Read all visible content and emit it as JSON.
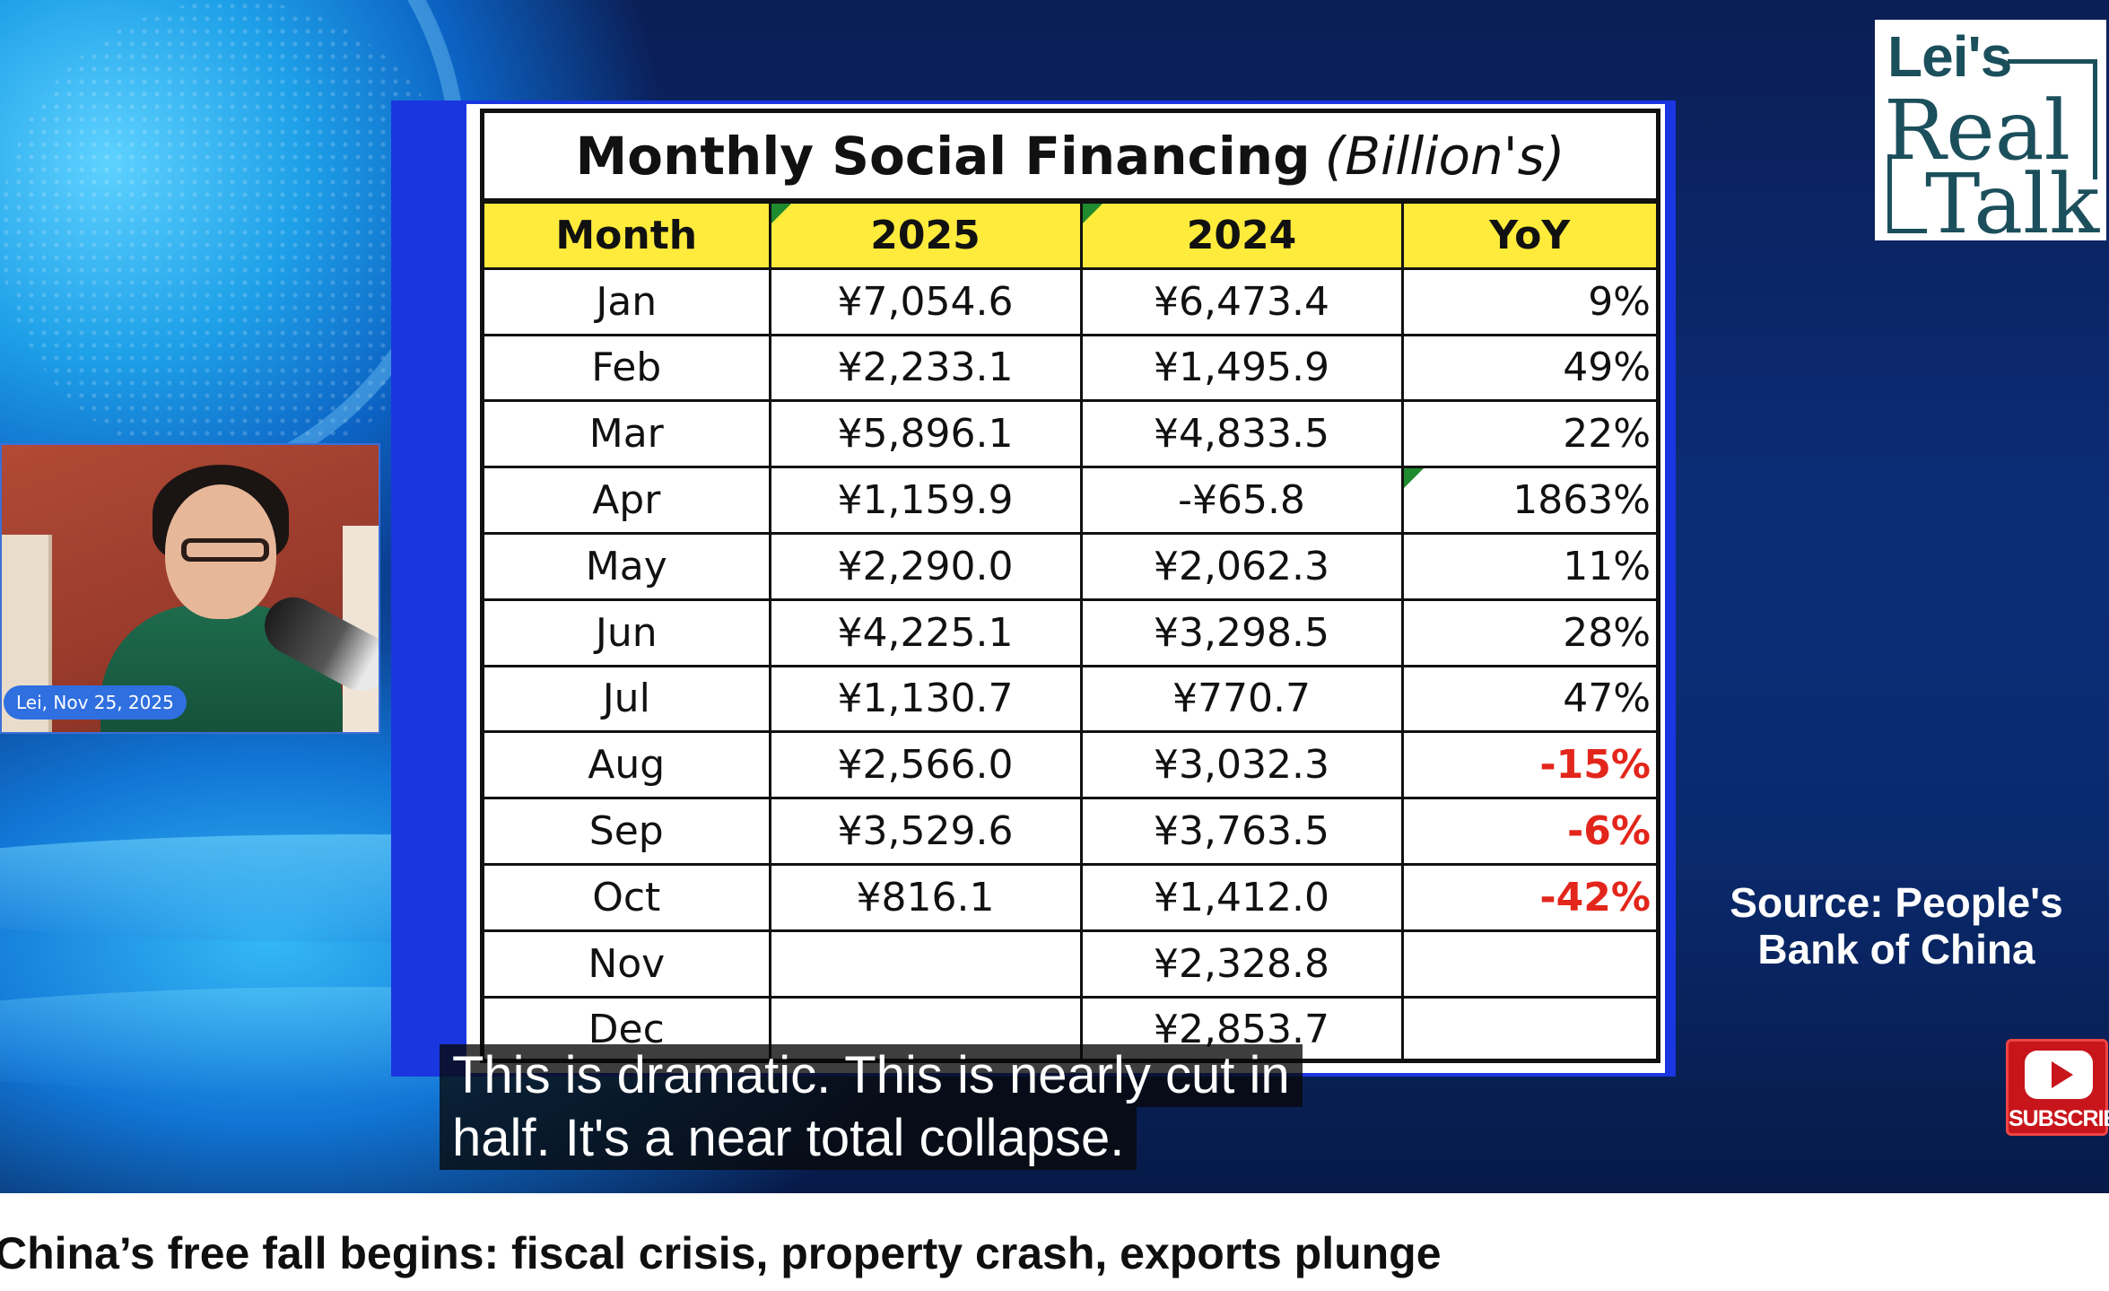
{
  "table": {
    "title": "Monthly Social Financing",
    "title_unit": "(Billion's)",
    "headers": [
      "Month",
      "2025",
      "2024",
      "YoY"
    ],
    "rows": [
      {
        "month": "Jan",
        "y2025": "¥7,054.6",
        "y2024": "¥6,473.4",
        "yoy": "9%",
        "negative": false
      },
      {
        "month": "Feb",
        "y2025": "¥2,233.1",
        "y2024": "¥1,495.9",
        "yoy": "49%",
        "negative": false
      },
      {
        "month": "Mar",
        "y2025": "¥5,896.1",
        "y2024": "¥4,833.5",
        "yoy": "22%",
        "negative": false
      },
      {
        "month": "Apr",
        "y2025": "¥1,159.9",
        "y2024": "-¥65.8",
        "yoy": "1863%",
        "negative": false
      },
      {
        "month": "May",
        "y2025": "¥2,290.0",
        "y2024": "¥2,062.3",
        "yoy": "11%",
        "negative": false
      },
      {
        "month": "Jun",
        "y2025": "¥4,225.1",
        "y2024": "¥3,298.5",
        "yoy": "28%",
        "negative": false
      },
      {
        "month": "Jul",
        "y2025": "¥1,130.7",
        "y2024": "¥770.7",
        "yoy": "47%",
        "negative": false
      },
      {
        "month": "Aug",
        "y2025": "¥2,566.0",
        "y2024": "¥3,032.3",
        "yoy": "-15%",
        "negative": true
      },
      {
        "month": "Sep",
        "y2025": "¥3,529.6",
        "y2024": "¥3,763.5",
        "yoy": "-6%",
        "negative": true
      },
      {
        "month": "Oct",
        "y2025": "¥816.1",
        "y2024": "¥1,412.0",
        "yoy": "-42%",
        "negative": true
      },
      {
        "month": "Nov",
        "y2025": "",
        "y2024": "¥2,328.8",
        "yoy": "",
        "negative": false
      },
      {
        "month": "Dec",
        "y2025": "",
        "y2024": "¥2,853.7",
        "yoy": "",
        "negative": false
      }
    ],
    "header_color": "#ffeb3b",
    "negative_color": "#e3261b"
  },
  "webcam": {
    "badge": "Lei, Nov 25, 2025"
  },
  "logo": {
    "line1": "Lei's",
    "line2": "Real",
    "line3": "Talk"
  },
  "source": {
    "line1": "Source: People's",
    "line2": "Bank of China"
  },
  "subscribe": {
    "label": "SUBSCRIBE",
    "icon": "youtube-play-icon"
  },
  "captions": {
    "line1": "This is dramatic. This is nearly cut in",
    "line2": "half. It's a near total collapse."
  },
  "video": {
    "title": "China’s free fall begins: fiscal crisis, property crash, exports plunge"
  },
  "colors": {
    "slide_background": "#1a36e0",
    "logo_text": "#1c4f5c",
    "subscribe_red": "#c8151b"
  }
}
